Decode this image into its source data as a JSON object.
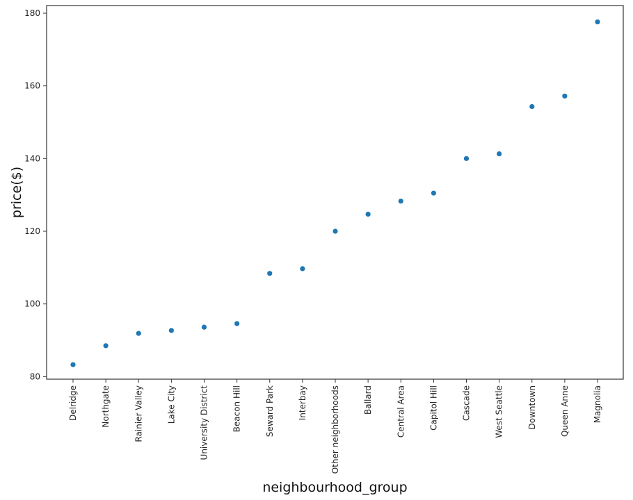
{
  "chart_data": {
    "type": "scatter",
    "title": "",
    "xlabel": "neighbourhood_group",
    "ylabel": "price($)",
    "categories": [
      "Delridge",
      "Northgate",
      "Rainier Valley",
      "Lake City",
      "University District",
      "Beacon Hill",
      "Seward Park",
      "Interbay",
      "Other neighborhoods",
      "Ballard",
      "Central Area",
      "Capitol Hill",
      "Cascade",
      "West Seattle",
      "Downtown",
      "Queen Anne",
      "Magnolia"
    ],
    "values": [
      83.3,
      88.5,
      91.9,
      92.7,
      93.6,
      94.6,
      108.4,
      109.7,
      120.0,
      124.7,
      128.3,
      130.5,
      140.0,
      141.3,
      154.3,
      157.2,
      177.6
    ],
    "ylim": [
      79.3,
      182.1
    ],
    "yticks": [
      80,
      100,
      120,
      140,
      160,
      180
    ],
    "point_color": "#1f77b4",
    "grid": false,
    "legend": "none"
  }
}
